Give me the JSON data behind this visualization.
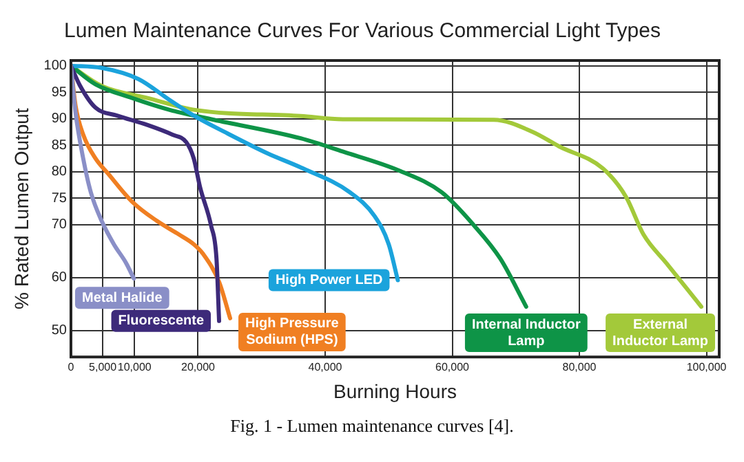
{
  "chart_data": {
    "type": "line",
    "title": "Lumen Maintenance Curves For Various Commercial Light Types",
    "xlabel": "Burning Hours",
    "ylabel": "% Rated Lumen Output",
    "xlim": [
      0,
      102000
    ],
    "xticks": [
      {
        "value": 0,
        "label": "0"
      },
      {
        "value": 5000,
        "label": "5,000"
      },
      {
        "value": 10000,
        "label": "10,000"
      },
      {
        "value": 20000,
        "label": "20,000"
      },
      {
        "value": 40000,
        "label": "40,000"
      },
      {
        "value": 60000,
        "label": "60,000"
      },
      {
        "value": 80000,
        "label": "80,000"
      },
      {
        "value": 100000,
        "label": "100,000"
      }
    ],
    "ylim": [
      45,
      101
    ],
    "yticks": [
      50,
      60,
      70,
      75,
      80,
      85,
      90,
      95,
      100
    ],
    "grid": true,
    "legend": false,
    "marker": "none",
    "line_style": "solid",
    "series": [
      {
        "name": "Metal Halide",
        "color": "#8a8fc7",
        "x": [
          0,
          720,
          1930,
          3130,
          4830,
          6750,
          8700,
          9900
        ],
        "values": [
          100,
          91.2,
          82.5,
          76.1,
          70.7,
          66.3,
          62.7,
          59.8
        ]
      },
      {
        "name": "Fluorescente",
        "color": "#3d2a7a",
        "x": [
          0,
          1450,
          3860,
          7250,
          12070,
          15940,
          18120,
          19320,
          20330,
          22050,
          22900,
          23310
        ],
        "values": [
          100,
          96.2,
          92.1,
          90.6,
          88.8,
          87,
          85.6,
          82.5,
          77,
          69.8,
          63.6,
          51.8
        ]
      },
      {
        "name": "High Pressure Sodium (HPS)",
        "color": "#f07f22",
        "x": [
          0,
          720,
          1930,
          3860,
          5800,
          9650,
          13520,
          16900,
          19320,
          20770,
          23330,
          25050
        ],
        "values": [
          100,
          92.5,
          87,
          82.5,
          79.7,
          74.3,
          70.7,
          68.2,
          66.3,
          64.5,
          59.1,
          52.3
        ]
      },
      {
        "name": "High Power LED",
        "color": "#1ba3dc",
        "x": [
          0,
          4830,
          10620,
          15450,
          19320,
          24180,
          31030,
          36150,
          43900,
          47780,
          50000,
          51430
        ],
        "values": [
          100,
          99.6,
          97.5,
          93.6,
          90.6,
          87.5,
          83.4,
          80.8,
          76.1,
          71.6,
          66.3,
          59.5
        ]
      },
      {
        "name": "Internal Inductor Lamp",
        "color": "#0e9447",
        "x": [
          0,
          3860,
          9650,
          15450,
          22490,
          36150,
          42770,
          51670,
          58330,
          63450,
          67540,
          71630
        ],
        "values": [
          100,
          96.5,
          93.9,
          91.7,
          89.8,
          86.3,
          83.8,
          80.2,
          76.1,
          69.8,
          63.6,
          54.5
        ]
      },
      {
        "name": "External Inductor Lamp",
        "color": "#a3c93a",
        "x": [
          0,
          4830,
          12070,
          19320,
          36150,
          42770,
          66530,
          72670,
          76770,
          83700,
          87360,
          90100,
          93700,
          99180
        ],
        "values": [
          100,
          96.2,
          93.9,
          91.7,
          90.5,
          89.9,
          89.8,
          87.5,
          84.8,
          80.6,
          75.2,
          68.1,
          62.7,
          54.5
        ]
      }
    ],
    "annotations": [
      "Fig. 1 - Lumen maintenance curves [4]."
    ]
  }
}
